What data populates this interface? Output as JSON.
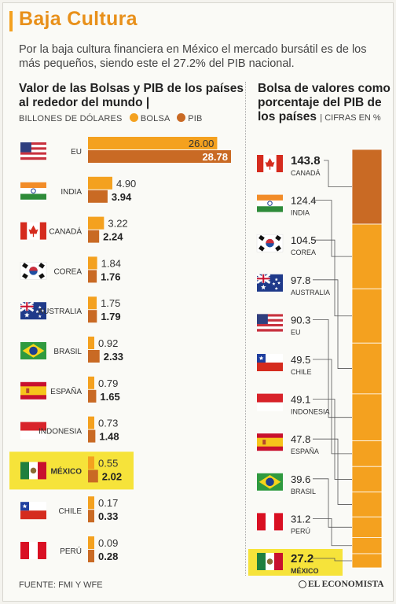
{
  "header": {
    "title": "Baja Cultura",
    "subtitle": "Por la baja cultura financiera en México el mercado bursátil es de los más pequeños, siendo este el 27.2% del PIB nacional."
  },
  "colors": {
    "bolsa": "#f4a11f",
    "pib": "#c96a24",
    "highlight": "#f6e33a",
    "title": "#e8901a"
  },
  "left_panel": {
    "title": "Valor de las Bolsas y PIB de los países al rededor del mundo |",
    "units": "BILLONES DE DÓLARES",
    "legend": {
      "bolsa": "BOLSA",
      "pib": "PIB"
    }
  },
  "right_panel": {
    "title": "Bolsa de valores como porcentaje del PIB de los países",
    "units": "CIFRAS EN %"
  },
  "footer": {
    "source": "FUENTE: FMI Y WFE",
    "brand": "EL ECONOMISTA"
  },
  "chart_data": [
    {
      "type": "bar",
      "title": "Valor de las Bolsas y PIB de los países al rededor del mundo",
      "units": "BILLONES DE DÓLARES",
      "categories": [
        "EU",
        "INDIA",
        "CANADÁ",
        "COREA",
        "AUSTRALIA",
        "BRASIL",
        "ESPAÑA",
        "INDONESIA",
        "MÉXICO",
        "CHILE",
        "PERÚ"
      ],
      "flags": [
        "us-flag-icon",
        "india-flag-icon",
        "canada-flag-icon",
        "korea-flag-icon",
        "australia-flag-icon",
        "brazil-flag-icon",
        "spain-flag-icon",
        "indonesia-flag-icon",
        "mexico-flag-icon",
        "chile-flag-icon",
        "peru-flag-icon"
      ],
      "series": [
        {
          "name": "BOLSA",
          "values": [
            26.0,
            4.9,
            3.22,
            1.84,
            1.75,
            0.92,
            0.79,
            0.73,
            0.55,
            0.17,
            0.09
          ],
          "labels": [
            "26.00",
            "4.90",
            "3.22",
            "1.84",
            "1.75",
            "0.92",
            "0.79",
            "0.73",
            "0.55",
            "0.17",
            "0.09"
          ]
        },
        {
          "name": "PIB",
          "values": [
            28.78,
            3.94,
            2.24,
            1.76,
            1.79,
            2.33,
            1.65,
            1.48,
            2.02,
            0.33,
            0.28
          ],
          "labels": [
            "28.78",
            "3.94",
            "2.24",
            "1.76",
            "1.79",
            "2.33",
            "1.65",
            "1.48",
            "2.02",
            "0.33",
            "0.28"
          ]
        }
      ],
      "highlight": "MÉXICO",
      "orientation": "horizontal"
    },
    {
      "type": "bar",
      "title": "Bolsa de valores como porcentaje del PIB de los países",
      "units": "CIFRAS EN %",
      "categories": [
        "CANADÁ",
        "INDIA",
        "COREA",
        "AUSTRALIA",
        "EU",
        "CHILE",
        "INDONESIA",
        "ESPAÑA",
        "BRASIL",
        "PERÚ",
        "MÉXICO"
      ],
      "flags": [
        "canada-flag-icon",
        "india-flag-icon",
        "korea-flag-icon",
        "australia-flag-icon",
        "us-flag-icon",
        "chile-flag-icon",
        "indonesia-flag-icon",
        "spain-flag-icon",
        "brazil-flag-icon",
        "peru-flag-icon",
        "mexico-flag-icon"
      ],
      "values": [
        143.8,
        124.4,
        104.5,
        97.8,
        90.3,
        49.5,
        49.1,
        47.8,
        39.6,
        31.2,
        27.2
      ],
      "labels": [
        "143.8",
        "124.4",
        "104.5",
        "97.8",
        "90.3",
        "49.5",
        "49.1",
        "47.8",
        "39.6",
        "31.2",
        "27.2"
      ],
      "highlight": "MÉXICO",
      "stacked_column": true
    }
  ]
}
